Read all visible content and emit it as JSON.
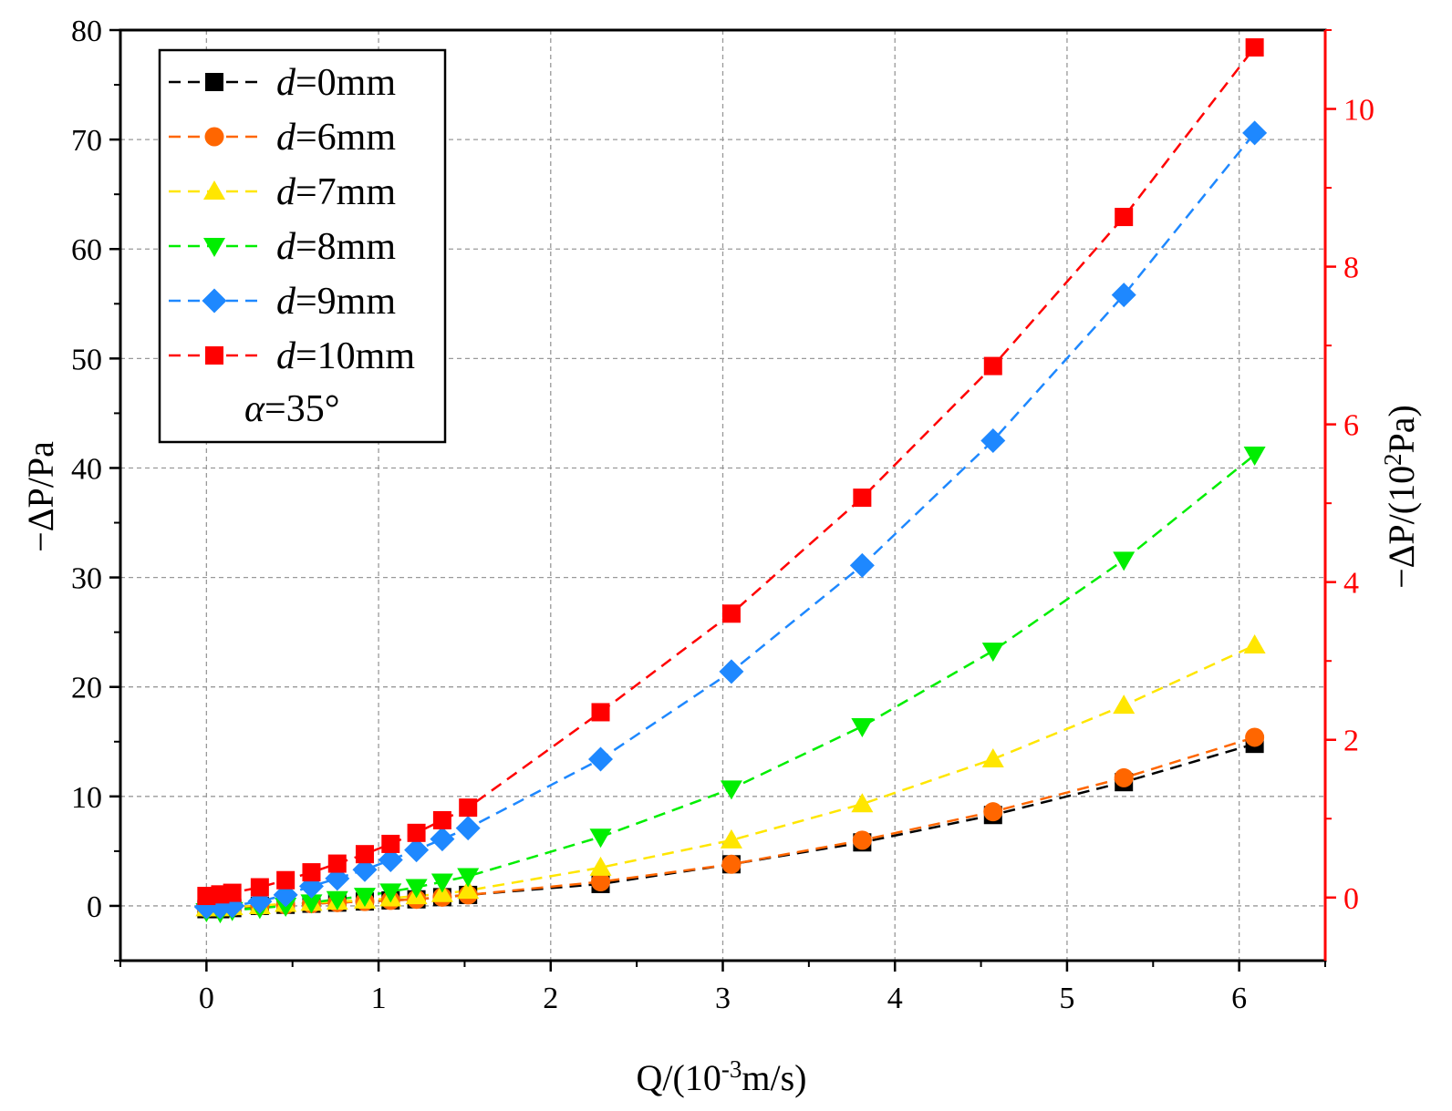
{
  "chart_data": {
    "type": "scatter",
    "title": "",
    "xlabel": "Q/(10-3m/s)",
    "xlabel_parts": {
      "prefix": "Q/(10",
      "sup": "-3",
      "suffix": "m/s)"
    },
    "ylabel": "−ΔP/Pa",
    "y2label": "−ΔP/(102Pa)",
    "y2label_parts": {
      "prefix": "−ΔP/(10",
      "sup": "2",
      "suffix": "Pa)"
    },
    "xlim": [
      -0.5,
      6.5
    ],
    "ylim": [
      -5,
      80
    ],
    "y2lim": [
      -0.8,
      11.0
    ],
    "x_ticks": [
      "0",
      "1",
      "2",
      "3",
      "4",
      "5",
      "6"
    ],
    "y_ticks": [
      "0",
      "10",
      "20",
      "30",
      "40",
      "50",
      "60",
      "70",
      "80"
    ],
    "y2_ticks": [
      "0",
      "2",
      "4",
      "6",
      "8",
      "10"
    ],
    "grid": true,
    "legend_position": "top-left",
    "annotation": "α=35°",
    "annotation_parts": {
      "symbol": "α",
      "rest": "=35°"
    },
    "axis_colors": {
      "left": "#000000",
      "right": "#ff0000"
    },
    "series": [
      {
        "name": "d=0mm",
        "name_var": "d",
        "name_rest": "=0mm",
        "color": "#000000",
        "marker": "square",
        "axis": "left",
        "x": [
          0,
          0.08,
          0.15,
          0.31,
          0.46,
          0.61,
          0.76,
          0.92,
          1.07,
          1.22,
          1.37,
          1.52,
          2.29,
          3.05,
          3.81,
          4.57,
          5.33,
          6.09
        ],
        "y": [
          -0.3,
          -0.3,
          -0.2,
          0.0,
          0.1,
          0.2,
          0.3,
          0.4,
          0.5,
          0.6,
          0.8,
          1.0,
          2.0,
          3.8,
          5.8,
          8.3,
          11.3,
          14.8
        ]
      },
      {
        "name": "d=6mm",
        "name_var": "d",
        "name_rest": "=6mm",
        "color": "#ff6600",
        "marker": "circle",
        "axis": "left",
        "x": [
          0,
          0.08,
          0.15,
          0.31,
          0.46,
          0.61,
          0.76,
          0.92,
          1.07,
          1.22,
          1.37,
          1.52,
          2.29,
          3.05,
          3.81,
          4.57,
          5.33,
          6.09
        ],
        "y": [
          -0.2,
          -0.2,
          -0.1,
          0.0,
          0.1,
          0.2,
          0.3,
          0.4,
          0.5,
          0.6,
          0.8,
          1.0,
          2.2,
          3.8,
          6.0,
          8.6,
          11.7,
          15.4
        ]
      },
      {
        "name": "d=7mm",
        "name_var": "d",
        "name_rest": "=7mm",
        "color": "#ffe600",
        "marker": "triangle-up",
        "axis": "left",
        "x": [
          0,
          0.08,
          0.15,
          0.31,
          0.46,
          0.61,
          0.76,
          0.92,
          1.07,
          1.22,
          1.37,
          1.52,
          2.29,
          3.05,
          3.81,
          4.57,
          5.33,
          6.09
        ],
        "y": [
          -0.2,
          -0.2,
          -0.1,
          0.0,
          0.2,
          0.3,
          0.4,
          0.5,
          0.7,
          0.9,
          1.1,
          1.4,
          3.5,
          6.0,
          9.3,
          13.4,
          18.3,
          23.8
        ]
      },
      {
        "name": "d=8mm",
        "name_var": "d",
        "name_rest": "=8mm",
        "color": "#00ee00",
        "marker": "triangle-down",
        "axis": "left",
        "x": [
          0,
          0.08,
          0.15,
          0.31,
          0.46,
          0.61,
          0.76,
          0.92,
          1.07,
          1.22,
          1.37,
          1.52,
          2.29,
          3.05,
          3.81,
          4.57,
          5.33,
          6.09
        ],
        "y": [
          -0.5,
          -0.6,
          -0.4,
          -0.2,
          0.0,
          0.3,
          0.6,
          0.9,
          1.3,
          1.7,
          2.2,
          2.7,
          6.3,
          10.7,
          16.4,
          23.3,
          31.6,
          41.2
        ]
      },
      {
        "name": "d=9mm",
        "name_var": "d",
        "name_rest": "=9mm",
        "color": "#1e88ff",
        "marker": "diamond",
        "axis": "left",
        "x": [
          0,
          0.08,
          0.15,
          0.31,
          0.46,
          0.61,
          0.76,
          0.92,
          1.07,
          1.22,
          1.37,
          1.52,
          2.29,
          3.05,
          3.81,
          4.57,
          5.33,
          6.09
        ],
        "y": [
          -0.1,
          -0.1,
          0.0,
          0.4,
          1.0,
          1.8,
          2.5,
          3.3,
          4.2,
          5.1,
          6.1,
          7.1,
          13.4,
          21.4,
          31.1,
          42.5,
          55.8,
          70.6
        ]
      },
      {
        "name": "d=10mm",
        "name_var": "d",
        "name_rest": "=10mm",
        "color": "#ff0000",
        "marker": "square",
        "axis": "right",
        "x": [
          0,
          0.08,
          0.15,
          0.31,
          0.46,
          0.61,
          0.76,
          0.92,
          1.07,
          1.22,
          1.37,
          1.52,
          2.29,
          3.05,
          3.81,
          4.57,
          5.33,
          6.09
        ],
        "y": [
          0.02,
          0.04,
          0.06,
          0.13,
          0.22,
          0.32,
          0.43,
          0.55,
          0.68,
          0.82,
          0.98,
          1.14,
          2.35,
          3.6,
          5.07,
          6.74,
          8.63,
          10.78
        ]
      }
    ]
  }
}
